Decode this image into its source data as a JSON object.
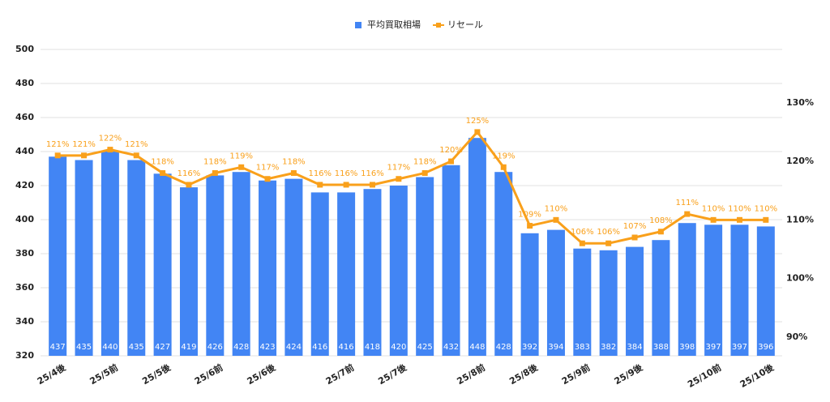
{
  "chart_data": {
    "type": "bar",
    "categories": [
      "25/4後",
      null,
      "25/5前",
      null,
      "25/5後",
      null,
      "25/6前",
      null,
      "25/6後",
      null,
      null,
      "25/7前",
      null,
      "25/7後",
      null,
      null,
      "25/8前",
      null,
      "25/8後",
      null,
      "25/9前",
      null,
      "25/9後",
      null,
      null,
      "25/10前",
      null,
      "25/10後"
    ],
    "series": [
      {
        "name": "平均買取相場",
        "type": "bar",
        "color": "#4285f4",
        "values": [
          437,
          435,
          440,
          435,
          427,
          419,
          426,
          428,
          423,
          424,
          416,
          416,
          418,
          420,
          425,
          432,
          448,
          428,
          392,
          394,
          383,
          382,
          384,
          388,
          398,
          397,
          397,
          396
        ]
      },
      {
        "name": "リセール",
        "type": "line",
        "axis": "y2",
        "color": "#f9a01b",
        "values": [
          121,
          121,
          122,
          121,
          118,
          116,
          118,
          119,
          117,
          118,
          116,
          116,
          116,
          117,
          118,
          120,
          125,
          119,
          109,
          110,
          106,
          106,
          107,
          108,
          111,
          110,
          110,
          110
        ],
        "value_labels": [
          "121%",
          "121%",
          "122%",
          "121%",
          "118%",
          "116%",
          "118%",
          "119%",
          "117%",
          "118%",
          "116%",
          "116%",
          "116%",
          "117%",
          "118%",
          "120%",
          "125%",
          "119%",
          "109%",
          "110%",
          "106%",
          "106%",
          "107%",
          "108%",
          "111%",
          "110%",
          "110%",
          "110%"
        ]
      }
    ],
    "ylim": [
      320,
      500
    ],
    "yticks": [
      320,
      340,
      360,
      380,
      400,
      420,
      440,
      460,
      480,
      500
    ],
    "y2lim": [
      86.8,
      139.1
    ],
    "y2ticks": [
      {
        "value": 90,
        "label": "90%"
      },
      {
        "value": 100,
        "label": "100%"
      },
      {
        "value": 110,
        "label": "110%"
      },
      {
        "value": 120,
        "label": "120%"
      },
      {
        "value": 130,
        "label": "130%"
      }
    ],
    "grid": true,
    "legend": "top"
  }
}
